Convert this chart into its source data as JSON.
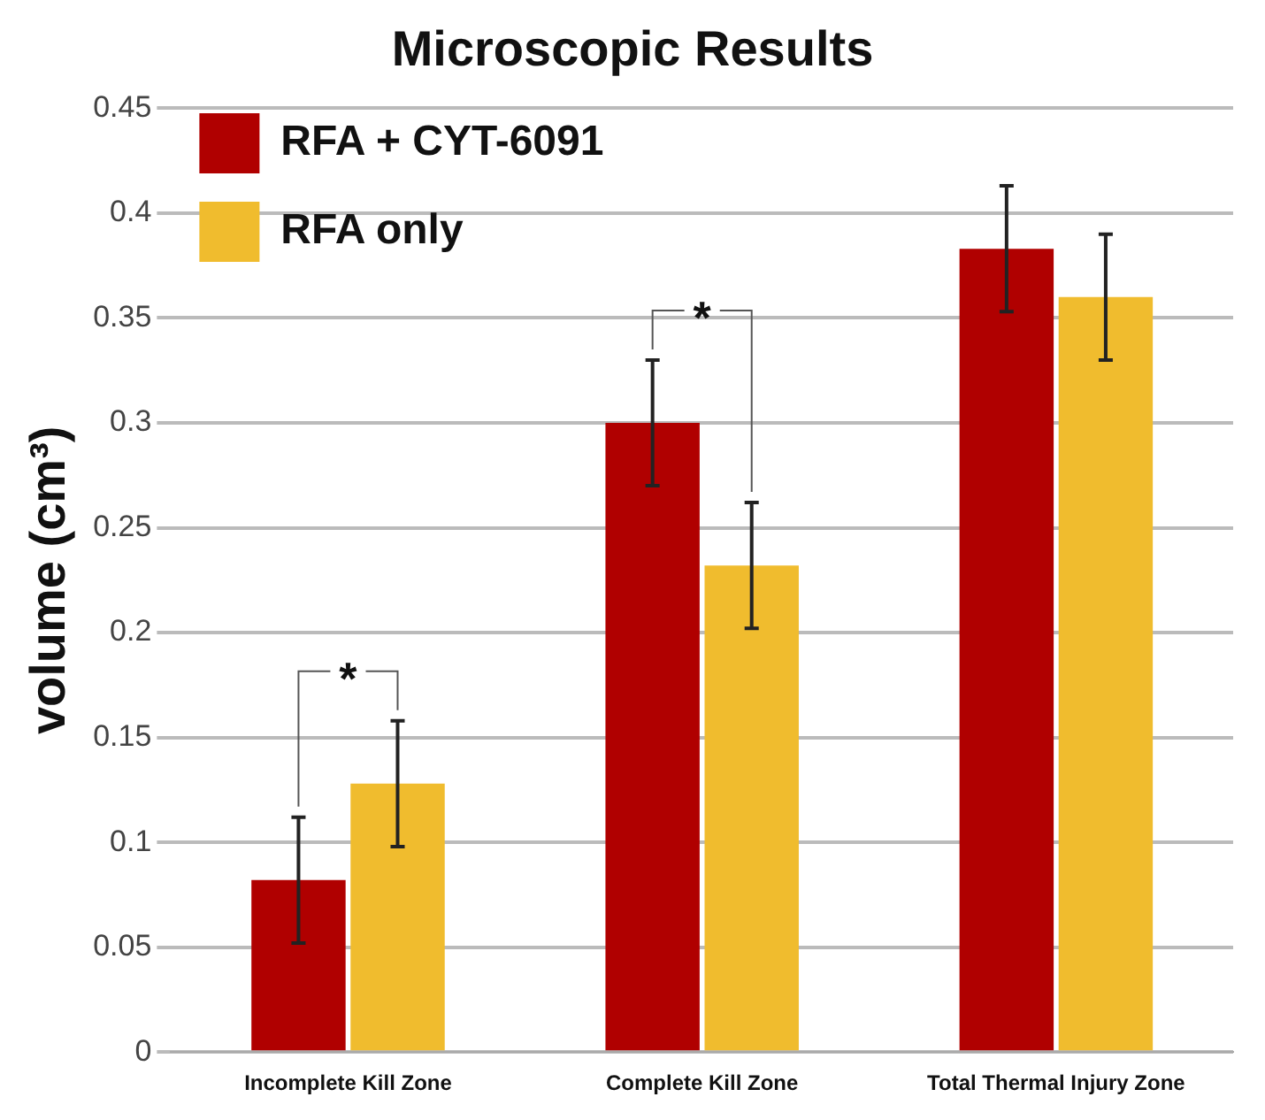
{
  "chart_data": {
    "type": "bar",
    "title": "Microscopic Results",
    "ylabel": "volume (cm³)",
    "categories": [
      "Incomplete Kill Zone",
      "Complete Kill Zone",
      "Total Thermal Injury Zone"
    ],
    "series": [
      {
        "name": "RFA + CYT-6091",
        "color": "#b00000",
        "values": [
          0.082,
          0.3,
          0.383
        ],
        "errors": [
          0.03,
          0.03,
          0.03
        ]
      },
      {
        "name": "RFA only",
        "color": "#f0bc2e",
        "values": [
          0.128,
          0.232,
          0.36
        ],
        "errors": [
          0.03,
          0.03,
          0.03
        ]
      }
    ],
    "ylim": [
      0,
      0.45
    ],
    "yticks": [
      0,
      0.05,
      0.1,
      0.15,
      0.2,
      0.25,
      0.3,
      0.35,
      0.4,
      0.45
    ],
    "grid": "y",
    "legend": "top left",
    "annotations": [
      "*",
      "*"
    ]
  }
}
